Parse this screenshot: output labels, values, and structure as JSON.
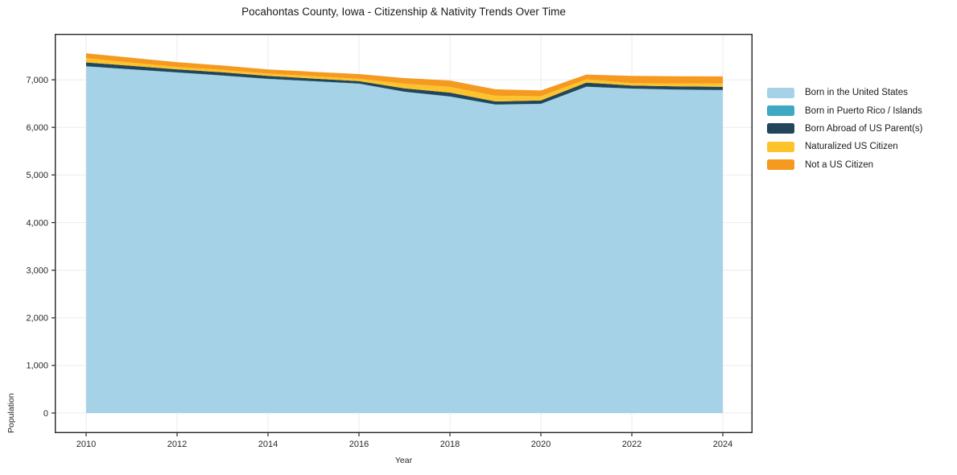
{
  "chart_data": {
    "type": "area",
    "stacked": true,
    "title": "Pocahontas County, Iowa - Citizenship & Nativity Trends Over Time",
    "xlabel": "Year",
    "ylabel": "Population",
    "grid": true,
    "legend_position": "right-outside",
    "x": [
      2010,
      2011,
      2012,
      2013,
      2014,
      2015,
      2016,
      2017,
      2018,
      2019,
      2020,
      2021,
      2022,
      2023,
      2024
    ],
    "x_ticks": [
      2010,
      2012,
      2014,
      2016,
      2018,
      2020,
      2022,
      2024
    ],
    "y_ticks": [
      0,
      1000,
      2000,
      3000,
      4000,
      5000,
      6000,
      7000
    ],
    "y_tick_labels": [
      "0",
      "1,000",
      "2,000",
      "3,000",
      "4,000",
      "5,000",
      "6,000",
      "7,000"
    ],
    "xlim": [
      2009.31,
      2024.655
    ],
    "ylim": [
      -422,
      7965
    ],
    "series": [
      {
        "name": "Born in the United States",
        "color": "#a6d2e7",
        "values": [
          7280,
          7215,
          7150,
          7085,
          7015,
          6965,
          6915,
          6745,
          6645,
          6475,
          6490,
          6850,
          6810,
          6790,
          6780
        ]
      },
      {
        "name": "Born in Puerto Rico / Islands",
        "color": "#3fa8c2",
        "values": [
          5,
          5,
          5,
          5,
          5,
          5,
          5,
          5,
          5,
          5,
          5,
          5,
          5,
          5,
          5
        ]
      },
      {
        "name": "Born Abroad of US Parent(s)",
        "color": "#22455a",
        "values": [
          80,
          72,
          65,
          67,
          60,
          55,
          50,
          68,
          80,
          65,
          70,
          85,
          65,
          68,
          65
        ]
      },
      {
        "name": "Naturalized US Citizen",
        "color": "#fcc32d",
        "values": [
          90,
          70,
          50,
          50,
          50,
          50,
          50,
          100,
          120,
          120,
          90,
          70,
          50,
          60,
          70
        ]
      },
      {
        "name": "Not a US Citizen",
        "color": "#f5991f",
        "values": [
          100,
          100,
          100,
          92,
          87,
          92,
          100,
          117,
          135,
          135,
          120,
          100,
          150,
          150,
          150
        ]
      }
    ],
    "totals": [
      7555,
      7462,
      7370,
      7299,
      7217,
      7167,
      7120,
      7035,
      6985,
      6800,
      6775,
      7110,
      7080,
      7073,
      7070
    ],
    "colors": {
      "spine": "#262626",
      "grid": "#ebebeb",
      "background": "#ffffff"
    }
  }
}
